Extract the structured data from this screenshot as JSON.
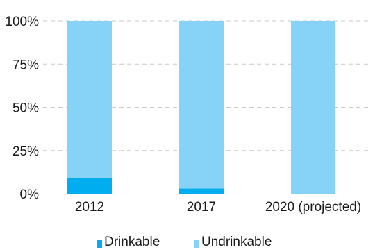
{
  "chart_data": {
    "type": "bar",
    "stacked": true,
    "categories": [
      "2012",
      "2017",
      "2020 (projected)"
    ],
    "series": [
      {
        "name": "Drinkable",
        "values": [
          9,
          3,
          0
        ],
        "color": "#00aeef"
      },
      {
        "name": "Undrinkable",
        "values": [
          91,
          97,
          100
        ],
        "color": "#87d3f7"
      }
    ],
    "y_ticks": [
      "0%",
      "25%",
      "50%",
      "75%",
      "100%"
    ],
    "ylim": [
      0,
      100
    ],
    "grid": "horizontal dashed",
    "legend_position": "bottom"
  }
}
